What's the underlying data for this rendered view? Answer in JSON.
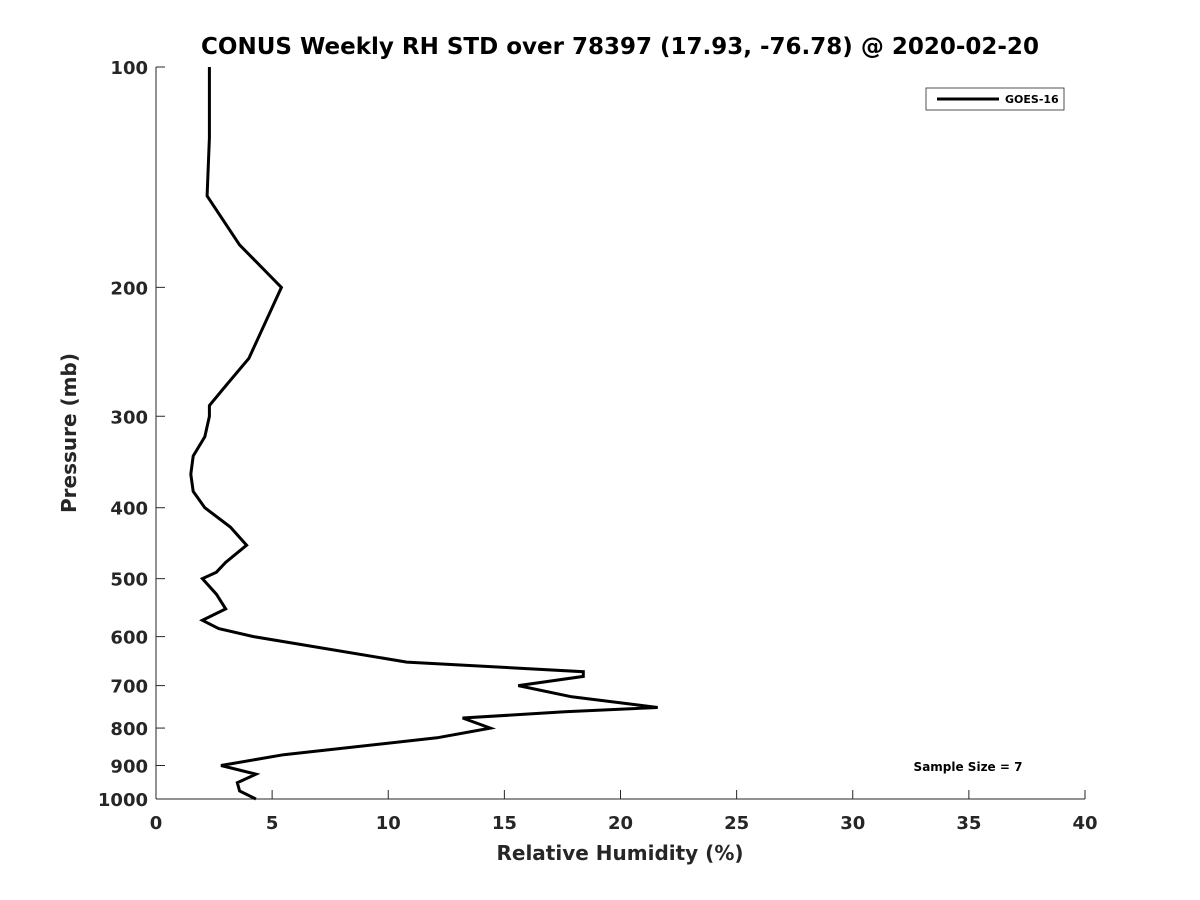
{
  "chart_data": {
    "type": "line",
    "title": "CONUS Weekly RH STD over 78397 (17.93, -76.78) @ 2020-02-20",
    "xlabel": "Relative Humidity (%)",
    "ylabel": "Pressure (mb)",
    "xlim": [
      0,
      40
    ],
    "ylim": [
      100,
      1000
    ],
    "y_scale": "log",
    "y_reversed": true,
    "x_ticks": [
      0,
      5,
      10,
      15,
      20,
      25,
      30,
      35,
      40
    ],
    "x_tick_labels": [
      "0",
      "5",
      "10",
      "15",
      "20",
      "25",
      "30",
      "35",
      "40"
    ],
    "y_ticks": [
      100,
      200,
      300,
      400,
      500,
      600,
      700,
      800,
      900,
      1000
    ],
    "y_tick_labels": [
      "100",
      "200",
      "300",
      "400",
      "500",
      "600",
      "700",
      "800",
      "900",
      "1000"
    ],
    "grid": false,
    "legend_position": "top-right",
    "series": [
      {
        "name": "GOES-16",
        "color": "#000000",
        "points": [
          {
            "x": 2.3,
            "p": 100
          },
          {
            "x": 2.3,
            "p": 125
          },
          {
            "x": 2.2,
            "p": 150
          },
          {
            "x": 3.6,
            "p": 175
          },
          {
            "x": 5.4,
            "p": 200
          },
          {
            "x": 4.0,
            "p": 250
          },
          {
            "x": 2.9,
            "p": 275
          },
          {
            "x": 2.3,
            "p": 290
          },
          {
            "x": 2.3,
            "p": 300
          },
          {
            "x": 2.1,
            "p": 320
          },
          {
            "x": 1.6,
            "p": 340
          },
          {
            "x": 1.5,
            "p": 360
          },
          {
            "x": 1.6,
            "p": 380
          },
          {
            "x": 2.1,
            "p": 400
          },
          {
            "x": 3.2,
            "p": 425
          },
          {
            "x": 3.9,
            "p": 450
          },
          {
            "x": 3.0,
            "p": 475
          },
          {
            "x": 2.6,
            "p": 490
          },
          {
            "x": 2.0,
            "p": 500
          },
          {
            "x": 2.6,
            "p": 525
          },
          {
            "x": 3.0,
            "p": 550
          },
          {
            "x": 2.0,
            "p": 570
          },
          {
            "x": 2.7,
            "p": 585
          },
          {
            "x": 4.2,
            "p": 600
          },
          {
            "x": 10.8,
            "p": 650
          },
          {
            "x": 18.4,
            "p": 670
          },
          {
            "x": 18.4,
            "p": 680
          },
          {
            "x": 15.6,
            "p": 700
          },
          {
            "x": 17.9,
            "p": 725
          },
          {
            "x": 21.6,
            "p": 750
          },
          {
            "x": 17.6,
            "p": 760
          },
          {
            "x": 13.2,
            "p": 775
          },
          {
            "x": 14.4,
            "p": 800
          },
          {
            "x": 12.1,
            "p": 825
          },
          {
            "x": 5.5,
            "p": 870
          },
          {
            "x": 2.8,
            "p": 900
          },
          {
            "x": 4.3,
            "p": 925
          },
          {
            "x": 3.5,
            "p": 950
          },
          {
            "x": 3.6,
            "p": 975
          },
          {
            "x": 4.3,
            "p": 1000
          }
        ]
      }
    ],
    "annotations": [
      {
        "text": "Sample Size = 7"
      }
    ]
  }
}
